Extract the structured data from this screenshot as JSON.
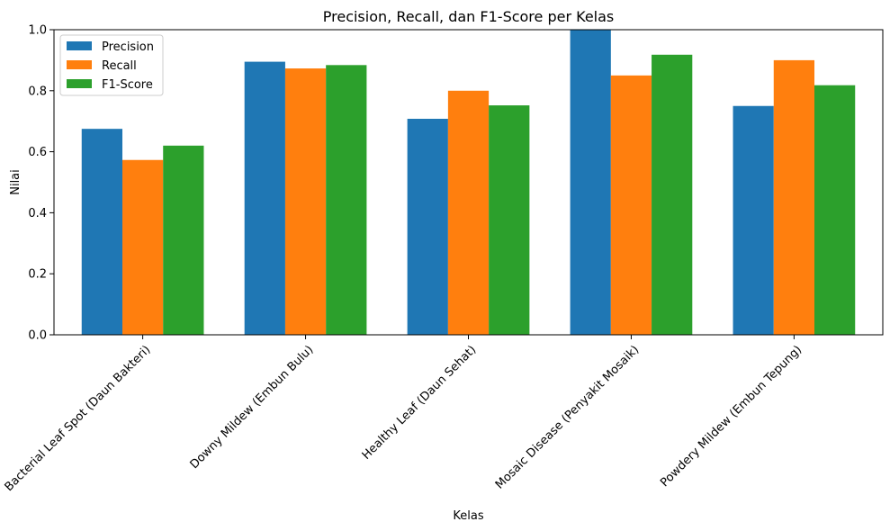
{
  "chart_data": {
    "type": "bar",
    "title": "Precision, Recall, dan F1-Score per Kelas",
    "xlabel": "Kelas",
    "ylabel": "Nilai",
    "ylim": [
      0,
      1.0
    ],
    "yticks": [
      "0.0",
      "0.2",
      "0.4",
      "0.6",
      "0.8",
      "1.0"
    ],
    "categories": [
      "Bacterial Leaf Spot (Daun Bakteri)",
      "Downy Mildew (Embun Bulu)",
      "Healthy Leaf (Daun Sehat)",
      "Mosaic Disease (Penyakit Mosaik)",
      "Powdery Mildew (Embun Tepung)"
    ],
    "series": [
      {
        "name": "Precision",
        "color": "#1f77b4",
        "values": [
          0.675,
          0.895,
          0.708,
          1.0,
          0.75
        ]
      },
      {
        "name": "Recall",
        "color": "#ff7f0e",
        "values": [
          0.573,
          0.873,
          0.8,
          0.85,
          0.9
        ]
      },
      {
        "name": "F1-Score",
        "color": "#2ca02c",
        "values": [
          0.62,
          0.884,
          0.752,
          0.918,
          0.818
        ]
      }
    ],
    "grid": false,
    "legend_position": "top-left"
  }
}
